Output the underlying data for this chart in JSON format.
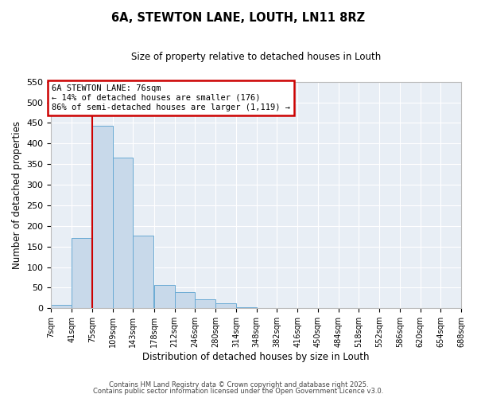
{
  "title": "6A, STEWTON LANE, LOUTH, LN11 8RZ",
  "subtitle": "Size of property relative to detached houses in Louth",
  "xlabel": "Distribution of detached houses by size in Louth",
  "ylabel": "Number of detached properties",
  "bar_color": "#c8d9ea",
  "bar_edge_color": "#6aaad4",
  "bg_color": "#e8eef5",
  "grid_color": "#ffffff",
  "annotation_box_color": "#cc0000",
  "vline_color": "#cc0000",
  "annotation_title": "6A STEWTON LANE: 76sqm",
  "annotation_line1": "← 14% of detached houses are smaller (176)",
  "annotation_line2": "86% of semi-detached houses are larger (1,119) →",
  "bins": [
    7,
    41,
    75,
    109,
    143,
    178,
    212,
    246,
    280,
    314,
    348,
    382,
    416,
    450,
    484,
    518,
    552,
    586,
    620,
    654,
    688
  ],
  "values": [
    8,
    170,
    443,
    365,
    176,
    57,
    40,
    21,
    12,
    3,
    1,
    0,
    0,
    0,
    0,
    0,
    0,
    0,
    0,
    1
  ],
  "ylim": [
    0,
    550
  ],
  "yticks": [
    0,
    50,
    100,
    150,
    200,
    250,
    300,
    350,
    400,
    450,
    500,
    550
  ],
  "vline_x": 75,
  "footnote1": "Contains HM Land Registry data © Crown copyright and database right 2025.",
  "footnote2": "Contains public sector information licensed under the Open Government Licence v3.0."
}
